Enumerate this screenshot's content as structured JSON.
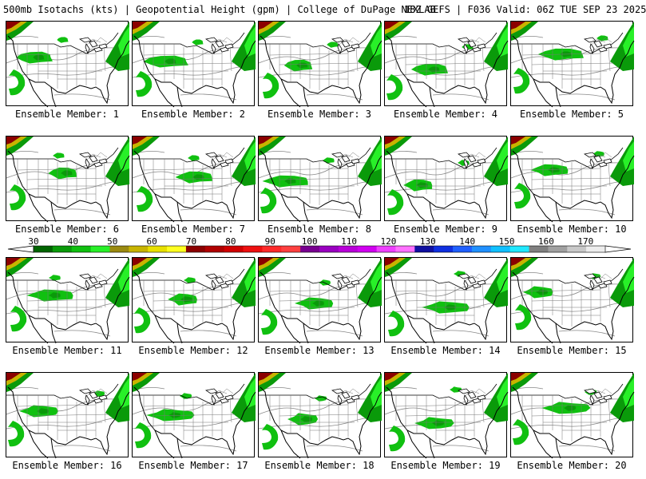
{
  "header": {
    "left": "500mb Isotachs (kts) | Geopotential Height (gpm) | College of DuPage NEXLAB",
    "right": "18Z GEFS | F036 Valid: 06Z TUE SEP 23 2025"
  },
  "colorbar": {
    "ticks": [
      "30",
      "40",
      "50",
      "60",
      "70",
      "80",
      "90",
      "100",
      "110",
      "120",
      "130",
      "140",
      "150",
      "160",
      "170"
    ],
    "colors": [
      "#006400",
      "#0a9a0a",
      "#10c010",
      "#28f028",
      "#9a8a10",
      "#c8b400",
      "#e8e000",
      "#ffff20",
      "#8b0000",
      "#b00000",
      "#d00000",
      "#ee1010",
      "#ff2a2a",
      "#ff4040",
      "#780090",
      "#9900c0",
      "#b800d8",
      "#d000f0",
      "#ee40ff",
      "#ff70ff",
      "#1010a0",
      "#1030e0",
      "#2060ff",
      "#2090ff",
      "#10c0ff",
      "#20e8ff",
      "#808080",
      "#a0a0a0",
      "#c8c8c8",
      "#ececec"
    ]
  },
  "members": [
    {
      "label": "Ensemble Member: 1"
    },
    {
      "label": "Ensemble Member: 2"
    },
    {
      "label": "Ensemble Member: 3"
    },
    {
      "label": "Ensemble Member: 4"
    },
    {
      "label": "Ensemble Member: 5"
    },
    {
      "label": "Ensemble Member: 6"
    },
    {
      "label": "Ensemble Member: 7"
    },
    {
      "label": "Ensemble Member: 8"
    },
    {
      "label": "Ensemble Member: 9"
    },
    {
      "label": "Ensemble Member: 10"
    },
    {
      "label": "Ensemble Member: 11"
    },
    {
      "label": "Ensemble Member: 12"
    },
    {
      "label": "Ensemble Member: 13"
    },
    {
      "label": "Ensemble Member: 14"
    },
    {
      "label": "Ensemble Member: 15"
    },
    {
      "label": "Ensemble Member: 16"
    },
    {
      "label": "Ensemble Member: 17"
    },
    {
      "label": "Ensemble Member: 18"
    },
    {
      "label": "Ensemble Member: 19"
    },
    {
      "label": "Ensemble Member: 20"
    }
  ]
}
